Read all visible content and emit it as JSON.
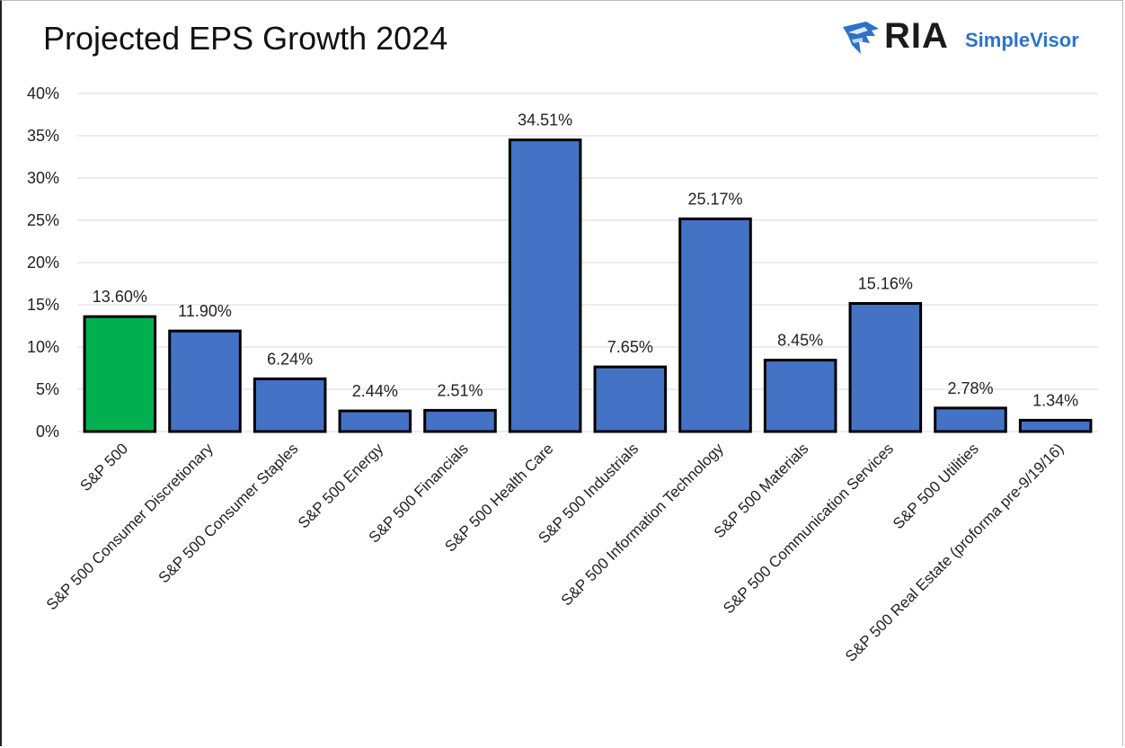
{
  "chart_data": {
    "type": "bar",
    "title": "Projected EPS Growth 2024",
    "categories": [
      "S&P 500",
      "S&P 500 Consumer Discretionary",
      "S&P 500 Consumer Staples",
      "S&P 500 Energy",
      "S&P 500 Financials",
      "S&P 500 Health Care",
      "S&P 500 Industrials",
      "S&P 500 Information Technology",
      "S&P 500 Materials",
      "S&P 500 Communication Services",
      "S&P 500 Utilities",
      "S&P 500 Real Estate (proforma pre-9/19/16)"
    ],
    "values": [
      13.6,
      11.9,
      6.24,
      2.44,
      2.51,
      34.51,
      7.65,
      25.17,
      8.45,
      15.16,
      2.78,
      1.34
    ],
    "value_labels": [
      "13.60%",
      "11.90%",
      "6.24%",
      "2.44%",
      "2.51%",
      "34.51%",
      "7.65%",
      "25.17%",
      "8.45%",
      "15.16%",
      "2.78%",
      "1.34%"
    ],
    "ylim": [
      0,
      40
    ],
    "yticks": [
      "0%",
      "5%",
      "10%",
      "15%",
      "20%",
      "25%",
      "30%",
      "35%",
      "40%"
    ],
    "xlabel": "",
    "ylabel": "",
    "grid": true,
    "colors": {
      "highlight": "#00b050",
      "bars": "#4472c4",
      "outline": "#000000",
      "grid": "#d9d9d9"
    },
    "highlight_index": 0
  },
  "logo": {
    "brand": "RIA",
    "product": "SimpleVisor",
    "icon": "eagle-head-icon"
  }
}
